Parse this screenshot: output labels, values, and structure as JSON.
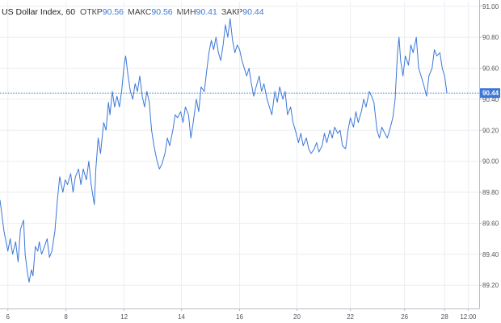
{
  "legend": {
    "symbol": "US Dollar Index, 60",
    "open_label": "ОТКР",
    "open_value": "90.56",
    "high_label": "МАКС",
    "high_value": "90.56",
    "low_label": "МИН",
    "low_value": "90.41",
    "close_label": "ЗАКР",
    "close_value": "90.44"
  },
  "colors": {
    "line": "#3c78d8",
    "price_tag": "#3c78d8",
    "grid": "#eceef2",
    "axis": "#b8bcc4"
  },
  "chart_data": {
    "type": "line",
    "series": [
      {
        "name": "US Dollar Index, 60",
        "points": [
          [
            0.0,
            89.75
          ],
          [
            0.5,
            89.55
          ],
          [
            1.0,
            89.42
          ],
          [
            1.3,
            89.5
          ],
          [
            1.6,
            89.4
          ],
          [
            2.0,
            89.48
          ],
          [
            2.3,
            89.35
          ],
          [
            2.6,
            89.56
          ],
          [
            3.0,
            89.62
          ],
          [
            3.2,
            89.4
          ],
          [
            3.5,
            89.28
          ],
          [
            3.7,
            89.22
          ],
          [
            4.0,
            89.3
          ],
          [
            4.2,
            89.26
          ],
          [
            4.5,
            89.45
          ],
          [
            4.8,
            89.42
          ],
          [
            5.0,
            89.48
          ],
          [
            5.3,
            89.4
          ],
          [
            5.6,
            89.44
          ],
          [
            6.0,
            89.5
          ],
          [
            6.3,
            89.38
          ],
          [
            6.6,
            89.42
          ],
          [
            7.0,
            89.55
          ],
          [
            7.3,
            89.75
          ],
          [
            7.6,
            89.9
          ],
          [
            8.0,
            89.8
          ],
          [
            8.3,
            89.88
          ],
          [
            8.6,
            89.85
          ],
          [
            9.0,
            89.92
          ],
          [
            9.3,
            89.8
          ],
          [
            9.6,
            89.9
          ],
          [
            10.0,
            89.95
          ],
          [
            10.3,
            89.85
          ],
          [
            10.6,
            89.95
          ],
          [
            11.0,
            89.88
          ],
          [
            11.3,
            90.0
          ],
          [
            11.6,
            89.85
          ],
          [
            12.0,
            89.72
          ],
          [
            12.2,
            89.95
          ],
          [
            12.5,
            90.15
          ],
          [
            12.8,
            90.05
          ],
          [
            13.2,
            90.25
          ],
          [
            13.5,
            90.2
          ],
          [
            13.8,
            90.38
          ],
          [
            14.0,
            90.3
          ],
          [
            14.3,
            90.45
          ],
          [
            14.6,
            90.35
          ],
          [
            14.9,
            90.42
          ],
          [
            15.2,
            90.35
          ],
          [
            15.5,
            90.46
          ],
          [
            15.8,
            90.62
          ],
          [
            16.0,
            90.68
          ],
          [
            16.3,
            90.55
          ],
          [
            16.6,
            90.45
          ],
          [
            16.9,
            90.4
          ],
          [
            17.2,
            90.5
          ],
          [
            17.5,
            90.45
          ],
          [
            17.8,
            90.55
          ],
          [
            18.1,
            90.42
          ],
          [
            18.4,
            90.35
          ],
          [
            18.7,
            90.45
          ],
          [
            19.0,
            90.38
          ],
          [
            19.3,
            90.2
          ],
          [
            19.6,
            90.1
          ],
          [
            20.0,
            90.0
          ],
          [
            20.3,
            89.95
          ],
          [
            20.6,
            89.98
          ],
          [
            21.0,
            90.05
          ],
          [
            21.3,
            90.15
          ],
          [
            21.6,
            90.1
          ],
          [
            22.0,
            90.2
          ],
          [
            22.3,
            90.3
          ],
          [
            22.6,
            90.28
          ],
          [
            23.0,
            90.32
          ],
          [
            23.3,
            90.25
          ],
          [
            23.6,
            90.35
          ],
          [
            24.0,
            90.3
          ],
          [
            24.3,
            90.15
          ],
          [
            24.6,
            90.25
          ],
          [
            25.0,
            90.4
          ],
          [
            25.3,
            90.32
          ],
          [
            25.6,
            90.48
          ],
          [
            26.0,
            90.45
          ],
          [
            26.3,
            90.58
          ],
          [
            26.6,
            90.7
          ],
          [
            26.9,
            90.78
          ],
          [
            27.2,
            90.72
          ],
          [
            27.5,
            90.8
          ],
          [
            27.8,
            90.7
          ],
          [
            28.1,
            90.65
          ],
          [
            28.4,
            90.75
          ],
          [
            28.7,
            90.88
          ],
          [
            29.0,
            90.8
          ],
          [
            29.3,
            90.92
          ],
          [
            29.6,
            90.78
          ],
          [
            29.9,
            90.7
          ],
          [
            30.2,
            90.75
          ],
          [
            30.5,
            90.72
          ],
          [
            30.8,
            90.65
          ],
          [
            31.1,
            90.6
          ],
          [
            31.4,
            90.55
          ],
          [
            31.7,
            90.6
          ],
          [
            32.0,
            90.5
          ],
          [
            32.3,
            90.42
          ],
          [
            32.6,
            90.48
          ],
          [
            33.0,
            90.55
          ],
          [
            33.3,
            90.45
          ],
          [
            33.6,
            90.5
          ],
          [
            34.0,
            90.4
          ],
          [
            34.3,
            90.35
          ],
          [
            34.6,
            90.3
          ],
          [
            35.0,
            90.45
          ],
          [
            35.3,
            90.38
          ],
          [
            35.6,
            90.48
          ],
          [
            36.0,
            90.4
          ],
          [
            36.3,
            90.45
          ],
          [
            36.6,
            90.3
          ],
          [
            37.0,
            90.35
          ],
          [
            37.3,
            90.25
          ],
          [
            37.6,
            90.2
          ],
          [
            38.0,
            90.12
          ],
          [
            38.3,
            90.18
          ],
          [
            38.6,
            90.1
          ],
          [
            39.0,
            90.15
          ],
          [
            39.3,
            90.08
          ],
          [
            39.6,
            90.05
          ],
          [
            40.0,
            90.08
          ],
          [
            40.3,
            90.12
          ],
          [
            40.6,
            90.06
          ],
          [
            41.0,
            90.1
          ],
          [
            41.3,
            90.18
          ],
          [
            41.6,
            90.12
          ],
          [
            42.0,
            90.2
          ],
          [
            42.3,
            90.15
          ],
          [
            42.6,
            90.22
          ],
          [
            43.0,
            90.18
          ],
          [
            43.3,
            90.2
          ],
          [
            43.6,
            90.1
          ],
          [
            44.0,
            90.08
          ],
          [
            44.3,
            90.2
          ],
          [
            44.6,
            90.28
          ],
          [
            45.0,
            90.22
          ],
          [
            45.3,
            90.32
          ],
          [
            45.6,
            90.25
          ],
          [
            46.0,
            90.32
          ],
          [
            46.3,
            90.4
          ],
          [
            46.6,
            90.35
          ],
          [
            47.0,
            90.45
          ],
          [
            47.3,
            90.42
          ],
          [
            47.6,
            90.38
          ],
          [
            48.0,
            90.2
          ],
          [
            48.3,
            90.15
          ],
          [
            48.6,
            90.22
          ],
          [
            49.0,
            90.18
          ],
          [
            49.3,
            90.15
          ],
          [
            49.6,
            90.2
          ],
          [
            50.0,
            90.28
          ],
          [
            50.3,
            90.4
          ],
          [
            50.6,
            90.7
          ],
          [
            50.8,
            90.8
          ],
          [
            51.0,
            90.65
          ],
          [
            51.3,
            90.55
          ],
          [
            51.6,
            90.68
          ],
          [
            52.0,
            90.62
          ],
          [
            52.3,
            90.75
          ],
          [
            52.6,
            90.7
          ],
          [
            53.0,
            90.8
          ],
          [
            53.3,
            90.6
          ],
          [
            53.6,
            90.55
          ],
          [
            54.0,
            90.48
          ],
          [
            54.3,
            90.42
          ],
          [
            54.6,
            90.55
          ],
          [
            55.0,
            90.6
          ],
          [
            55.3,
            90.72
          ],
          [
            55.6,
            90.68
          ],
          [
            56.0,
            90.7
          ],
          [
            56.3,
            90.6
          ],
          [
            56.6,
            90.55
          ],
          [
            56.9,
            90.44
          ]
        ]
      }
    ],
    "current_price": 90.44,
    "current_price_label": "90.44",
    "x_ticks": [
      {
        "x": 1.0,
        "label": "6"
      },
      {
        "x": 8.4,
        "label": "8"
      },
      {
        "x": 15.8,
        "label": "12"
      },
      {
        "x": 23.1,
        "label": "14"
      },
      {
        "x": 30.5,
        "label": "16"
      },
      {
        "x": 37.8,
        "label": "20"
      },
      {
        "x": 44.6,
        "label": "22"
      },
      {
        "x": 51.5,
        "label": "26"
      },
      {
        "x": 56.6,
        "label": "28"
      },
      {
        "x": 59.6,
        "label": "12:00"
      }
    ],
    "y_ticks": [
      {
        "y": 91.0,
        "label": "91.00"
      },
      {
        "y": 90.8,
        "label": "90.80"
      },
      {
        "y": 90.6,
        "label": "90.60"
      },
      {
        "y": 90.4,
        "label": "90.40"
      },
      {
        "y": 90.2,
        "label": "90.20"
      },
      {
        "y": 90.0,
        "label": "90.00"
      },
      {
        "y": 89.8,
        "label": "89.80"
      },
      {
        "y": 89.6,
        "label": "89.60"
      },
      {
        "y": 89.4,
        "label": "89.40"
      },
      {
        "y": 89.2,
        "label": "89.20"
      }
    ],
    "xlim": [
      0,
      61
    ],
    "ylim": [
      89.05,
      91.03
    ],
    "grid": true,
    "legend_position": "top-left",
    "title": "",
    "xlabel": "",
    "ylabel": ""
  }
}
